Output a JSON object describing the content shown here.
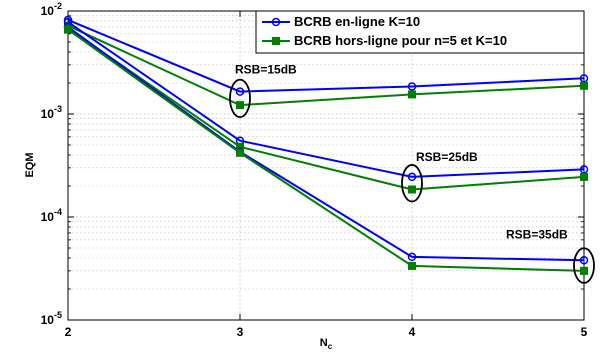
{
  "chart_data": {
    "type": "line",
    "title": "",
    "xlabel": "N",
    "xlabel_sub": "c",
    "ylabel": "EQM",
    "x": [
      2,
      3,
      4,
      5
    ],
    "xlim": [
      2,
      5
    ],
    "ylim": [
      1e-05,
      0.01
    ],
    "yscale": "log",
    "grid": true,
    "legend_position": "top-right",
    "x_tick_labels": [
      "2",
      "3",
      "4",
      "5"
    ],
    "y_tick_labels": [
      {
        "base": "10",
        "exp": "-5"
      },
      {
        "base": "10",
        "exp": "-4"
      },
      {
        "base": "10",
        "exp": "-3"
      },
      {
        "base": "10",
        "exp": "-2"
      }
    ],
    "legend": [
      {
        "label": "BCRB en-ligne K=10",
        "color": "#0000ff",
        "marker": "circle"
      },
      {
        "label": "BCRB hors-ligne pour n=5 et K=10",
        "color": "#008000",
        "marker": "square"
      }
    ],
    "groups": [
      {
        "annotation": "RSB=15dB",
        "series": [
          {
            "legend_index": 0,
            "values": [
              0.0082,
              0.00165,
              0.00185,
              0.00222
            ]
          },
          {
            "legend_index": 1,
            "values": [
              0.0072,
              0.00122,
              0.00155,
              0.00188
            ]
          }
        ]
      },
      {
        "annotation": "RSB=25dB",
        "series": [
          {
            "legend_index": 0,
            "values": [
              0.0078,
              0.00055,
              0.000245,
              0.00029
            ]
          },
          {
            "legend_index": 1,
            "values": [
              0.0068,
              0.00048,
              0.000185,
              0.000245
            ]
          }
        ]
      },
      {
        "annotation": "RSB=35dB",
        "series": [
          {
            "legend_index": 0,
            "values": [
              0.007,
              0.00043,
              4.1e-05,
              3.8e-05
            ]
          },
          {
            "legend_index": 1,
            "values": [
              0.0066,
              0.00042,
              3.35e-05,
              3e-05
            ]
          }
        ]
      }
    ]
  }
}
